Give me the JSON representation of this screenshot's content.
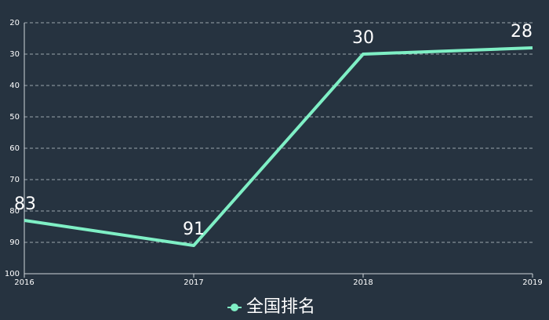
{
  "chart_data": {
    "type": "line",
    "categories": [
      "2016",
      "2017",
      "2018",
      "2019"
    ],
    "series": [
      {
        "name": "全国排名",
        "color": "#7fefc5",
        "values": [
          83,
          91,
          30,
          28
        ]
      }
    ],
    "ylim": [
      20,
      100
    ],
    "y_inverted": true,
    "yticks": [
      20,
      30,
      40,
      50,
      60,
      70,
      80,
      90,
      100
    ],
    "grid": true,
    "legend": "bottom"
  }
}
